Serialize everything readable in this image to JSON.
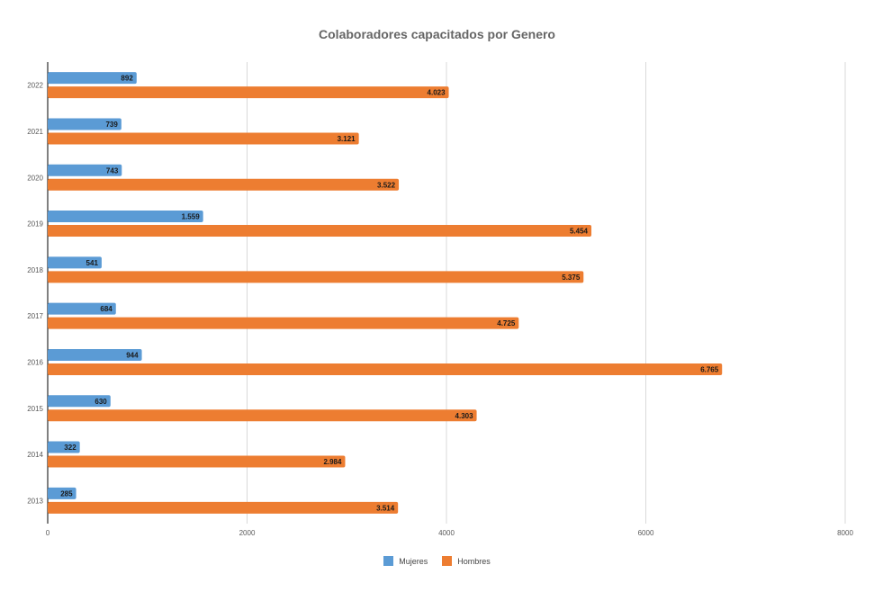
{
  "chart_data": {
    "type": "bar",
    "orientation": "horizontal",
    "title": "Colaboradores capacitados por Genero",
    "categories": [
      "2022",
      "2021",
      "2020",
      "2019",
      "2018",
      "2017",
      "2016",
      "2015",
      "2014",
      "2013"
    ],
    "series": [
      {
        "name": "Mujeres",
        "color": "#5b9bd5",
        "values": [
          892,
          739,
          743,
          1559,
          541,
          684,
          944,
          630,
          322,
          285
        ],
        "labels": [
          "892",
          "739",
          "743",
          "1.559",
          "541",
          "684",
          "944",
          "630",
          "322",
          "285"
        ]
      },
      {
        "name": "Hombres",
        "color": "#ed7d31",
        "values": [
          4023,
          3121,
          3522,
          5454,
          5375,
          4725,
          6765,
          4303,
          2984,
          3514
        ],
        "labels": [
          "4.023",
          "3.121",
          "3.522",
          "5.454",
          "5.375",
          "4.725",
          "6.765",
          "4.303",
          "2.984",
          "3.514"
        ]
      }
    ],
    "xlim": [
      0,
      8000
    ],
    "xticks": [
      "0",
      "2000",
      "4000",
      "6000",
      "8000"
    ],
    "grid": "vertical",
    "legend_position": "bottom"
  }
}
